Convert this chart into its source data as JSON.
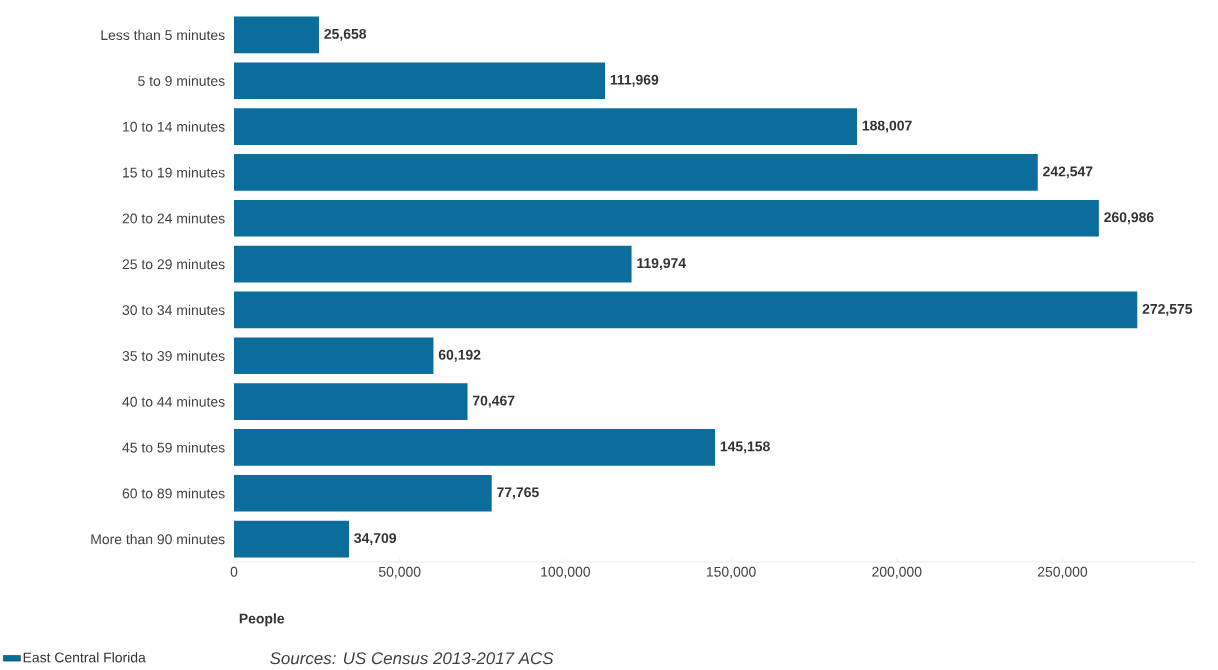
{
  "chart_data": {
    "type": "bar",
    "orientation": "horizontal",
    "categories": [
      "Less than 5 minutes",
      "5 to 9 minutes",
      "10 to 14 minutes",
      "15 to 19 minutes",
      "20 to 24 minutes",
      "25 to 29 minutes",
      "30 to 34 minutes",
      "35 to 39 minutes",
      "40 to 44 minutes",
      "45 to 59 minutes",
      "60 to 89 minutes",
      "More than 90 minutes"
    ],
    "series": [
      {
        "name": "East Central Florida",
        "color": "#0b6d9c",
        "values": [
          25658,
          111969,
          188007,
          242547,
          260986,
          119974,
          272575,
          60192,
          70467,
          145158,
          77765,
          34709
        ],
        "value_labels": [
          "25,658",
          "111,969",
          "188,007",
          "242,547",
          "260,986",
          "119,974",
          "272,575",
          "60,192",
          "70,467",
          "145,158",
          "77,765",
          "34,709"
        ]
      }
    ],
    "xlabel": "People",
    "xlim": [
      0,
      290000
    ],
    "xticks": [
      0,
      {
        "value": 50000,
        "label": "50,000"
      },
      {
        "value": 100000,
        "label": "100,000"
      },
      {
        "value": 150000,
        "label": "150,000"
      },
      {
        "value": 200000,
        "label": "200,000"
      },
      {
        "value": 250000,
        "label": "250,000"
      }
    ],
    "legend": "bottom left",
    "grid": false,
    "annotations": [
      "Sources: US Census 2013-2017 ACS"
    ]
  }
}
